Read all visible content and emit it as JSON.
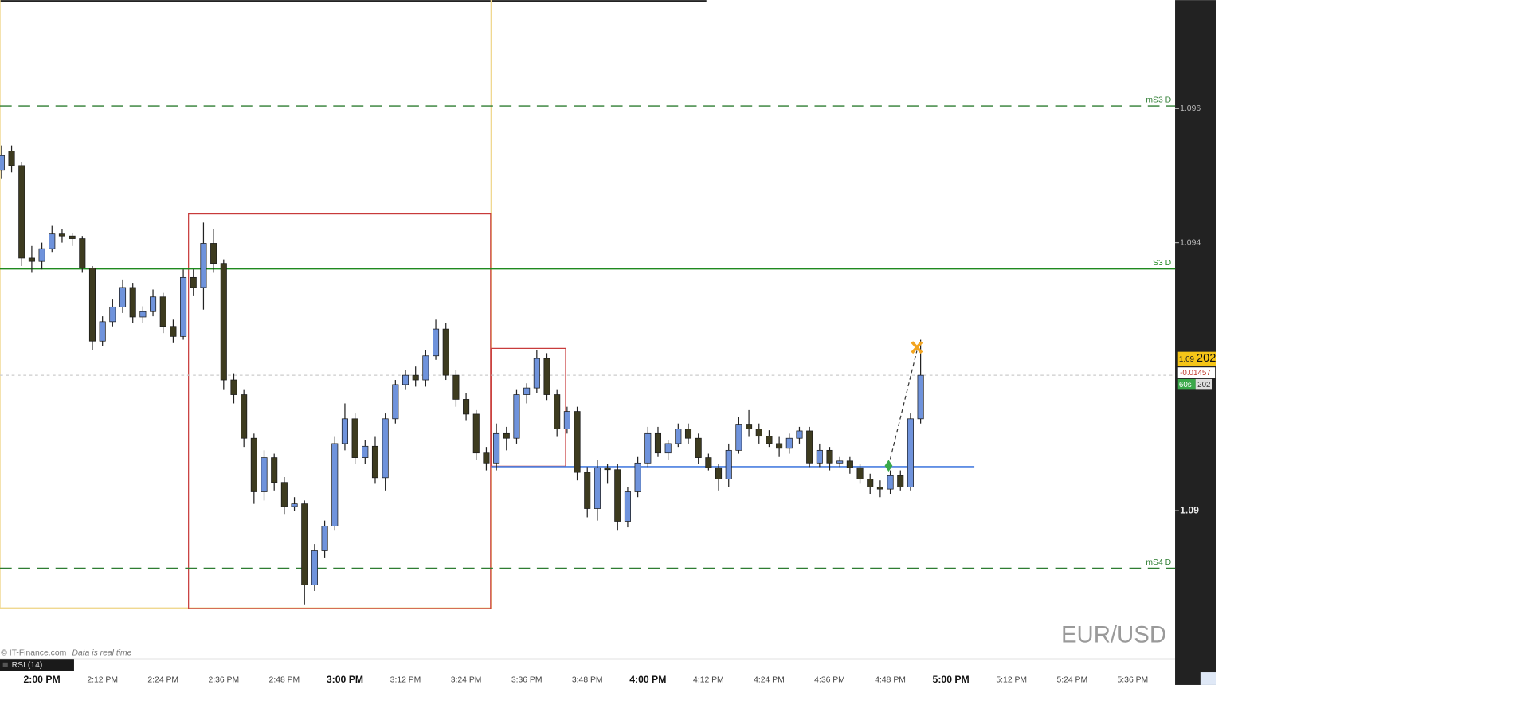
{
  "chart_data": {
    "type": "candlestick",
    "symbol": "EUR/USD",
    "x": [
      "1:52 PM",
      "1:54 PM",
      "1:56 PM",
      "1:58 PM",
      "2:00 PM",
      "2:02 PM",
      "2:04 PM",
      "2:06 PM",
      "2:08 PM",
      "2:10 PM",
      "2:12 PM",
      "2:14 PM",
      "2:16 PM",
      "2:18 PM",
      "2:20 PM",
      "2:22 PM",
      "2:24 PM",
      "2:26 PM",
      "2:28 PM",
      "2:30 PM",
      "2:32 PM",
      "2:34 PM",
      "2:36 PM",
      "2:38 PM",
      "2:40 PM",
      "2:42 PM",
      "2:44 PM",
      "2:46 PM",
      "2:48 PM",
      "2:50 PM",
      "2:52 PM",
      "2:54 PM",
      "2:56 PM",
      "2:58 PM",
      "3:00 PM",
      "3:02 PM",
      "3:04 PM",
      "3:06 PM",
      "3:08 PM",
      "3:10 PM",
      "3:12 PM",
      "3:14 PM",
      "3:16 PM",
      "3:18 PM",
      "3:20 PM",
      "3:22 PM",
      "3:24 PM",
      "3:26 PM",
      "3:28 PM",
      "3:30 PM",
      "3:32 PM",
      "3:34 PM",
      "3:36 PM",
      "3:38 PM",
      "3:40 PM",
      "3:42 PM",
      "3:44 PM",
      "3:46 PM",
      "3:48 PM",
      "3:50 PM",
      "3:52 PM",
      "3:54 PM",
      "3:56 PM",
      "3:58 PM",
      "4:00 PM",
      "4:02 PM",
      "4:04 PM",
      "4:06 PM",
      "4:08 PM",
      "4:10 PM",
      "4:12 PM",
      "4:14 PM",
      "4:16 PM",
      "4:18 PM",
      "4:20 PM",
      "4:22 PM",
      "4:24 PM",
      "4:26 PM",
      "4:28 PM",
      "4:30 PM",
      "4:32 PM",
      "4:34 PM",
      "4:36 PM",
      "4:38 PM",
      "4:40 PM",
      "4:42 PM",
      "4:44 PM",
      "4:46 PM",
      "4:48 PM",
      "4:50 PM",
      "4:52 PM",
      "4:54 PM"
    ],
    "open": [
      1.09508,
      1.09537,
      1.09515,
      1.09377,
      1.09372,
      1.09391,
      1.09413,
      1.0941,
      1.09406,
      1.09362,
      1.09253,
      1.09282,
      1.09304,
      1.09333,
      1.09289,
      1.09297,
      1.09319,
      1.09275,
      1.0926,
      1.09348,
      1.09333,
      1.09399,
      1.09369,
      1.09195,
      1.09173,
      1.09108,
      1.09028,
      1.09079,
      1.09042,
      1.09006,
      1.0901,
      1.08889,
      1.0894,
      1.08977,
      1.091,
      1.09137,
      1.09079,
      1.09096,
      1.09049,
      1.09137,
      1.09188,
      1.09202,
      1.09195,
      1.09231,
      1.09271,
      1.09202,
      1.09166,
      1.09144,
      1.09086,
      1.09071,
      1.09115,
      1.09108,
      1.09173,
      1.09183,
      1.09227,
      1.09173,
      1.09122,
      1.09148,
      1.09057,
      1.09003,
      1.09064,
      1.09061,
      1.08984,
      1.09028,
      1.09071,
      1.09115,
      1.09086,
      1.091,
      1.09122,
      1.09108,
      1.09079,
      1.09064,
      1.09047,
      1.0909,
      1.09129,
      1.09122,
      1.09111,
      1.091,
      1.09093,
      1.09108,
      1.09119,
      1.09071,
      1.0909,
      1.09071,
      1.09074,
      1.09064,
      1.09047,
      1.09035,
      1.09032,
      1.09052,
      1.09035,
      1.09137
    ],
    "high": [
      1.09545,
      1.09545,
      1.0952,
      1.09395,
      1.094,
      1.09425,
      1.0942,
      1.09415,
      1.0941,
      1.09365,
      1.0929,
      1.09315,
      1.09345,
      1.0934,
      1.09305,
      1.0933,
      1.09325,
      1.09285,
      1.0936,
      1.0936,
      1.0943,
      1.0942,
      1.09375,
      1.09205,
      1.0918,
      1.09115,
      1.0909,
      1.09085,
      1.0905,
      1.0902,
      1.09015,
      1.0895,
      1.08985,
      1.0911,
      1.0916,
      1.09145,
      1.09105,
      1.0911,
      1.09145,
      1.09195,
      1.0921,
      1.09215,
      1.0924,
      1.09285,
      1.0928,
      1.0921,
      1.09175,
      1.0915,
      1.09095,
      1.0913,
      1.09125,
      1.0918,
      1.0919,
      1.0924,
      1.09235,
      1.0918,
      1.09155,
      1.09155,
      1.09065,
      1.09075,
      1.0907,
      1.0907,
      1.09035,
      1.0908,
      1.09125,
      1.09125,
      1.09105,
      1.0913,
      1.0913,
      1.09115,
      1.09085,
      1.0907,
      1.091,
      1.0914,
      1.0915,
      1.0913,
      1.0912,
      1.0911,
      1.09115,
      1.09125,
      1.09125,
      1.091,
      1.09095,
      1.0908,
      1.0908,
      1.0907,
      1.09055,
      1.09045,
      1.0906,
      1.0906,
      1.09145,
      1.09255
    ],
    "low": [
      1.09495,
      1.09505,
      1.09365,
      1.09355,
      1.0936,
      1.09385,
      1.094,
      1.09395,
      1.09355,
      1.0924,
      1.09245,
      1.09275,
      1.09295,
      1.0928,
      1.0928,
      1.0929,
      1.09265,
      1.0925,
      1.09255,
      1.0932,
      1.093,
      1.09355,
      1.0918,
      1.0916,
      1.09095,
      1.0901,
      1.09015,
      1.0903,
      1.08995,
      1.09,
      1.0886,
      1.0888,
      1.0893,
      1.0897,
      1.0909,
      1.0907,
      1.0907,
      1.0904,
      1.0903,
      1.0913,
      1.0918,
      1.09185,
      1.09185,
      1.09225,
      1.09195,
      1.09155,
      1.09135,
      1.09075,
      1.0906,
      1.0906,
      1.0909,
      1.091,
      1.0916,
      1.09175,
      1.09165,
      1.0911,
      1.09115,
      1.09045,
      1.0899,
      1.08985,
      1.0904,
      1.0897,
      1.08975,
      1.0902,
      1.09065,
      1.0908,
      1.09075,
      1.09095,
      1.091,
      1.0907,
      1.0906,
      1.0903,
      1.09035,
      1.09085,
      1.0911,
      1.091,
      1.09095,
      1.0908,
      1.09085,
      1.091,
      1.09065,
      1.09065,
      1.0906,
      1.09065,
      1.09055,
      1.0904,
      1.09025,
      1.0902,
      1.09025,
      1.0903,
      1.0903,
      1.0913
    ],
    "close": [
      1.0953,
      1.09515,
      1.09377,
      1.09372,
      1.09391,
      1.09413,
      1.0941,
      1.09406,
      1.09362,
      1.09253,
      1.09282,
      1.09304,
      1.09333,
      1.09289,
      1.09297,
      1.09319,
      1.09275,
      1.0926,
      1.09348,
      1.09333,
      1.09399,
      1.09369,
      1.09195,
      1.09173,
      1.09108,
      1.09028,
      1.09079,
      1.09042,
      1.09006,
      1.0901,
      1.08889,
      1.0894,
      1.08977,
      1.091,
      1.09137,
      1.09079,
      1.09096,
      1.09049,
      1.09137,
      1.09188,
      1.09202,
      1.09195,
      1.09231,
      1.09271,
      1.09202,
      1.09166,
      1.09144,
      1.09086,
      1.09071,
      1.09115,
      1.09108,
      1.09173,
      1.09183,
      1.09227,
      1.09173,
      1.09122,
      1.09148,
      1.09057,
      1.09003,
      1.09064,
      1.09061,
      1.08984,
      1.09028,
      1.09071,
      1.09115,
      1.09086,
      1.091,
      1.09122,
      1.09108,
      1.09079,
      1.09064,
      1.09047,
      1.0909,
      1.09129,
      1.09122,
      1.09111,
      1.091,
      1.09093,
      1.09108,
      1.09119,
      1.09071,
      1.0909,
      1.09071,
      1.09074,
      1.09064,
      1.09047,
      1.09035,
      1.09032,
      1.09052,
      1.09035,
      1.09137,
      1.09202
    ],
    "up_color": "#6f93dc",
    "down_color": "#3d3b1f",
    "ylim": [
      1.08779,
      1.09762
    ],
    "yticks": [
      1.09,
      1.094,
      1.096
    ],
    "xticks": [
      "2:00 PM",
      "2:12 PM",
      "2:24 PM",
      "2:36 PM",
      "2:48 PM",
      "3:00 PM",
      "3:12 PM",
      "3:24 PM",
      "3:36 PM",
      "3:48 PM",
      "4:00 PM",
      "4:12 PM",
      "4:24 PM",
      "4:36 PM",
      "4:48 PM",
      "5:00 PM",
      "5:12 PM",
      "5:24 PM",
      "5:36 PM"
    ],
    "levels": [
      {
        "label": "mS3 D",
        "value": 1.09604,
        "style": "dashed",
        "color": "#2e7d32"
      },
      {
        "label": "S3 D",
        "value": 1.09361,
        "style": "solid",
        "color": "#1f8a1f"
      },
      {
        "label": "mS4 D",
        "value": 1.08914,
        "style": "dashed",
        "color": "#2e7d32"
      }
    ],
    "last_price": 1.09202,
    "last_price_label": {
      "prefix": "1.09",
      "pips": "202"
    },
    "change": "-0.01457",
    "timeframe": "60s",
    "timeframe_value": "202",
    "indicator": "RSI (14)",
    "copyright": "© IT-Finance.com",
    "realtime_note": "Data is real time"
  }
}
